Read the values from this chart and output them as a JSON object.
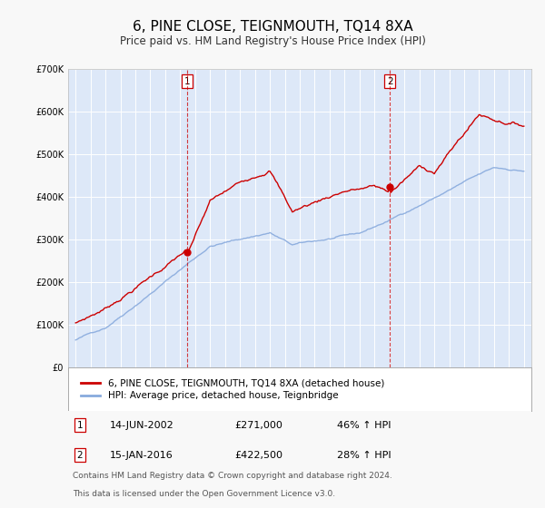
{
  "title": "6, PINE CLOSE, TEIGNMOUTH, TQ14 8XA",
  "subtitle": "Price paid vs. HM Land Registry's House Price Index (HPI)",
  "title_fontsize": 11,
  "subtitle_fontsize": 8.5,
  "bg_color": "#f8f8f8",
  "plot_bg_color": "#dde8f8",
  "grid_color": "#ffffff",
  "red_color": "#cc0000",
  "blue_color": "#88aadd",
  "ylim": [
    0,
    700000
  ],
  "yticks": [
    0,
    100000,
    200000,
    300000,
    400000,
    500000,
    600000,
    700000
  ],
  "ytick_labels": [
    "£0",
    "£100K",
    "£200K",
    "£300K",
    "£400K",
    "£500K",
    "£600K",
    "£700K"
  ],
  "sale1_date_num": 2002.45,
  "sale1_price": 271000,
  "sale2_date_num": 2016.04,
  "sale2_price": 422500,
  "legend_label_red": "6, PINE CLOSE, TEIGNMOUTH, TQ14 8XA (detached house)",
  "legend_label_blue": "HPI: Average price, detached house, Teignbridge",
  "table_row1": [
    "1",
    "14-JUN-2002",
    "£271,000",
    "46% ↑ HPI"
  ],
  "table_row2": [
    "2",
    "15-JAN-2016",
    "£422,500",
    "28% ↑ HPI"
  ],
  "footnote1": "Contains HM Land Registry data © Crown copyright and database right 2024.",
  "footnote2": "This data is licensed under the Open Government Licence v3.0."
}
